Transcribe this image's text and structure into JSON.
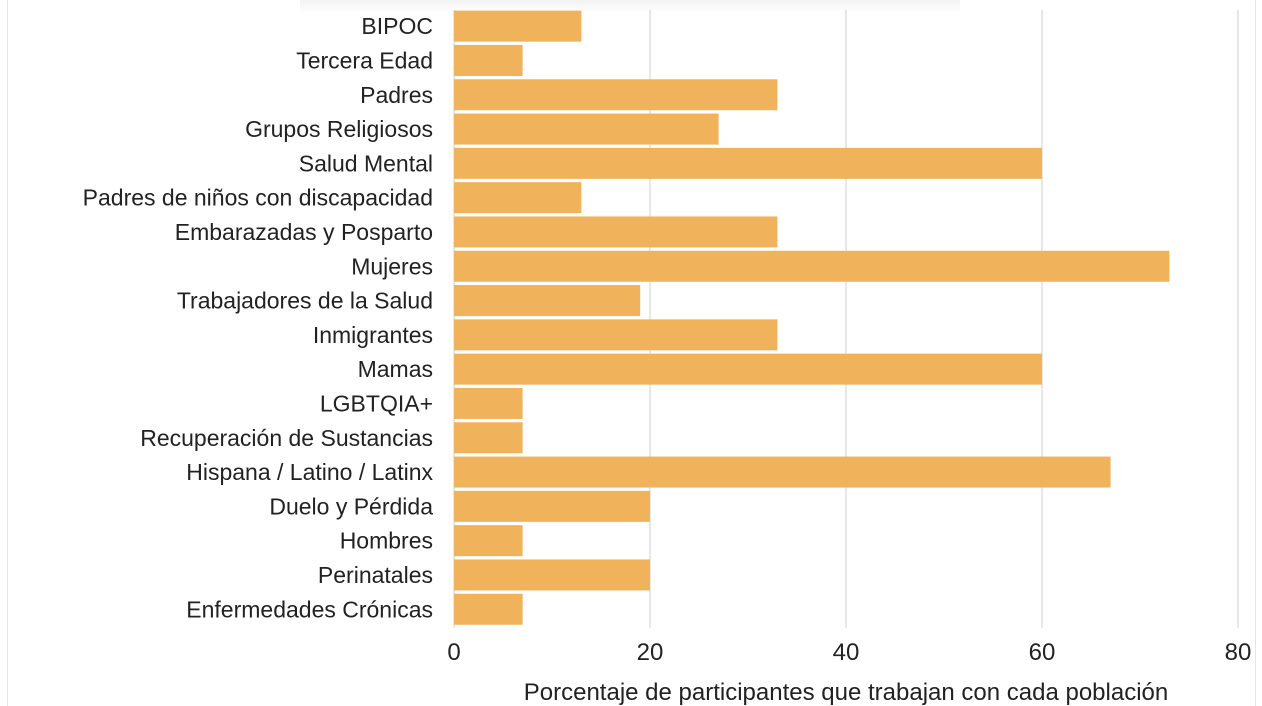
{
  "chart_data": {
    "type": "bar",
    "orientation": "horizontal",
    "title": "",
    "xlabel": "Porcentaje de participantes que trabajan con cada población",
    "ylabel": "",
    "xlim": [
      0,
      80
    ],
    "x_ticks": [
      "0",
      "20",
      "40",
      "60",
      "80"
    ],
    "grid": "vertical",
    "bar_color": "#F0B25A",
    "categories": [
      "BIPOC",
      "Tercera Edad",
      "Padres",
      "Grupos Religiosos",
      "Salud Mental",
      "Padres de niños con discapacidad",
      "Embarazadas y Posparto",
      "Mujeres",
      "Trabajadores de la Salud",
      "Inmigrantes",
      "Mamas",
      "LGBTQIA+",
      "Recuperación de Sustancias",
      "Hispana / Latino / Latinx",
      "Duelo y Pérdida",
      "Hombres",
      "Perinatales",
      "Enfermedades Crónicas"
    ],
    "values": [
      13,
      7,
      33,
      27,
      60,
      13,
      33,
      73,
      19,
      33,
      60,
      7,
      7,
      67,
      20,
      7,
      20,
      7
    ]
  }
}
